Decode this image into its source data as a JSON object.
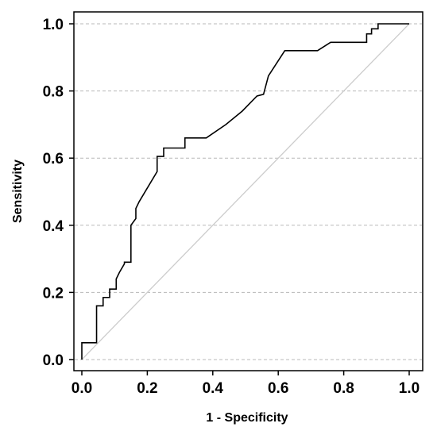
{
  "chart_data": {
    "type": "line",
    "title": "",
    "xlabel": "1 - Specificity",
    "ylabel": "Sensitivity",
    "xlim": [
      0.0,
      1.0
    ],
    "ylim": [
      0.0,
      1.0
    ],
    "xticks": [
      "0.0",
      "0.2",
      "0.4",
      "0.6",
      "0.8",
      "1.0"
    ],
    "yticks": [
      "0.0",
      "0.2",
      "0.4",
      "0.6",
      "0.8",
      "1.0"
    ],
    "grid": "horizontal-dashed",
    "legend": "none",
    "series": [
      {
        "color": "#000000",
        "x": [
          0.0,
          0.0,
          0.045,
          0.045,
          0.065,
          0.065,
          0.085,
          0.085,
          0.105,
          0.105,
          0.115,
          0.13,
          0.13,
          0.15,
          0.15,
          0.165,
          0.165,
          0.175,
          0.23,
          0.23,
          0.25,
          0.25,
          0.315,
          0.315,
          0.38,
          0.44,
          0.49,
          0.535,
          0.555,
          0.57,
          0.62,
          0.72,
          0.76,
          0.87,
          0.87,
          0.885,
          0.885,
          0.905,
          0.905,
          1.0
        ],
        "y": [
          0.0,
          0.05,
          0.05,
          0.16,
          0.16,
          0.185,
          0.185,
          0.21,
          0.21,
          0.24,
          0.26,
          0.285,
          0.29,
          0.29,
          0.4,
          0.42,
          0.45,
          0.47,
          0.56,
          0.605,
          0.605,
          0.63,
          0.63,
          0.66,
          0.66,
          0.7,
          0.74,
          0.785,
          0.79,
          0.845,
          0.92,
          0.92,
          0.945,
          0.945,
          0.97,
          0.97,
          0.985,
          0.985,
          1.0,
          1.0
        ]
      },
      {
        "color": "#cccccc",
        "x": [
          0.0,
          1.0
        ],
        "y": [
          0.0,
          1.0
        ]
      }
    ]
  }
}
